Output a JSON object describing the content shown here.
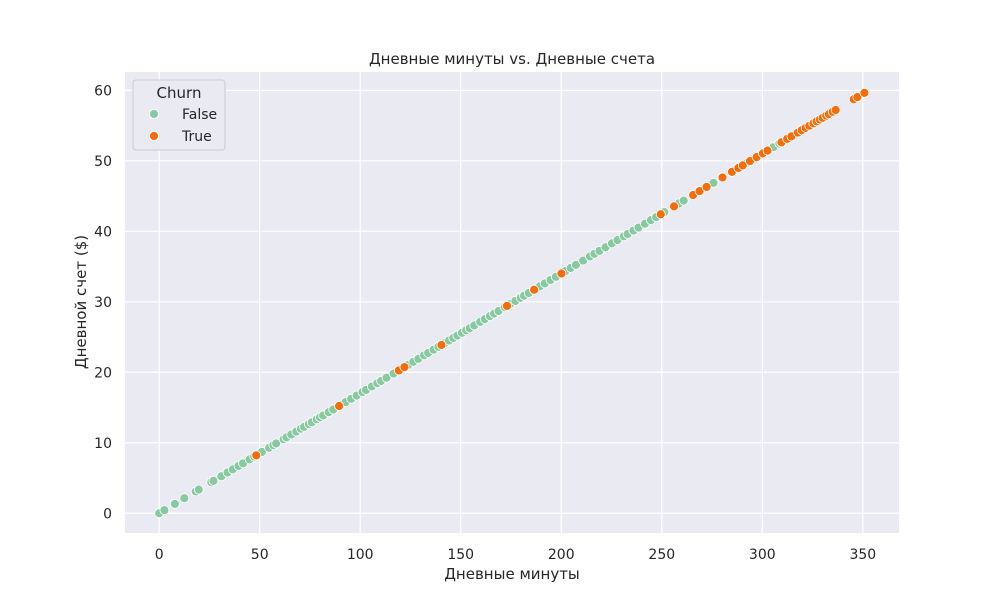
{
  "chart_data": {
    "type": "scatter",
    "title": "Дневные минуты vs. Дневные счета",
    "xlabel": "Дневные минуты",
    "ylabel": "Дневной счет ($)",
    "xlim": [
      -17,
      368
    ],
    "ylim": [
      -2.8,
      62.6
    ],
    "xticks": [
      0,
      50,
      100,
      150,
      200,
      250,
      300,
      350
    ],
    "yticks": [
      0,
      10,
      20,
      30,
      40,
      50,
      60
    ],
    "grid": true,
    "legend": {
      "title": "Churn",
      "placement": "top-left"
    },
    "rate_per_minute": 0.17,
    "series": [
      {
        "name": "False",
        "color": "#88c9a1",
        "x": [
          0,
          2.6,
          7.8,
          12.5,
          18.2,
          19.7,
          25.9,
          27.0,
          30.9,
          34.0,
          36.6,
          39.5,
          41.7,
          45.0,
          47.3,
          49.5,
          51.1,
          54.7,
          56.8,
          58.2,
          61.9,
          63.3,
          65.7,
          68.2,
          70.5,
          72.1,
          74.4,
          75.9,
          78.4,
          80.0,
          81.6,
          84.3,
          86.6,
          90.3,
          92.8,
          95.5,
          98.2,
          101.1,
          102.9,
          105.8,
          108.5,
          110.4,
          113.1,
          116.6,
          121.2,
          123.9,
          126.4,
          128.9,
          131.8,
          133.8,
          136.5,
          138.9,
          141.9,
          144.2,
          146.3,
          148.3,
          150.6,
          152.7,
          154.4,
          156.7,
          159.7,
          162.0,
          164.5,
          166.6,
          168.8,
          171.9,
          174.5,
          177.2,
          179.8,
          181.5,
          183.8,
          187.6,
          189.4,
          191.8,
          194.7,
          197.3,
          202.1,
          204.7,
          207.3,
          210.9,
          214.3,
          216.5,
          219.0,
          222.0,
          225.2,
          228.0,
          231.1,
          233.0,
          235.9,
          238.4,
          241.6,
          244.6,
          247.2,
          251.3,
          258.6,
          260.9,
          268.4,
          275.7,
          285.9,
          292.5,
          303.8,
          305.4,
          308.5
        ]
      },
      {
        "name": "True",
        "color": "#f46d0a",
        "x": [
          48.3,
          89.5,
          119.2,
          122.0,
          140.4,
          173.0,
          186.5,
          200.1,
          249.5,
          256.1,
          265.6,
          268.8,
          272.3,
          280.2,
          284.9,
          288.1,
          290.3,
          293.9,
          297.2,
          300.3,
          302.6,
          309.5,
          312.4,
          314.5,
          317.7,
          319.6,
          321.6,
          323.4,
          325.4,
          327.0,
          328.6,
          330.0,
          331.8,
          333.1,
          335.0,
          336.5,
          345.5,
          347.3,
          350.8
        ]
      }
    ]
  }
}
